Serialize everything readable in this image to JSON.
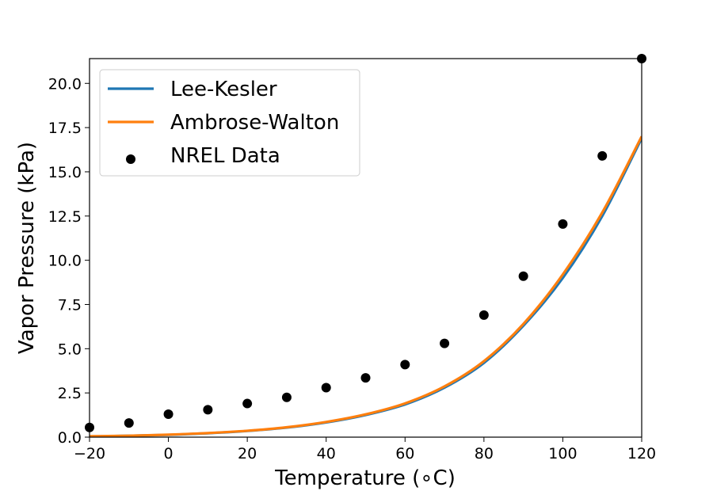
{
  "chart_data": {
    "type": "line",
    "title": "",
    "xlabel": "Temperature (∘C)",
    "ylabel": "Vapor Pressure (kPa)",
    "xlim": [
      -20,
      120
    ],
    "ylim": [
      0,
      21.4
    ],
    "xticks": [
      -20,
      0,
      20,
      40,
      60,
      80,
      100,
      120
    ],
    "xtick_labels": [
      "−20",
      "0",
      "20",
      "40",
      "60",
      "80",
      "100",
      "120"
    ],
    "yticks": [
      0,
      2.5,
      5,
      7.5,
      10,
      12.5,
      15,
      17.5,
      20
    ],
    "ytick_labels": [
      "0.0",
      "2.5",
      "5.0",
      "7.5",
      "10.0",
      "12.5",
      "15.0",
      "17.5",
      "20.0"
    ],
    "grid": false,
    "legend_position": "top-left",
    "series": [
      {
        "name": "Lee-Kesler",
        "kind": "line",
        "color": "#1f77b4",
        "x": [
          -20,
          -10,
          0,
          10,
          20,
          30,
          40,
          50,
          60,
          70,
          80,
          90,
          100,
          110,
          120
        ],
        "y": [
          0.04,
          0.08,
          0.13,
          0.22,
          0.35,
          0.54,
          0.83,
          1.25,
          1.85,
          2.8,
          4.2,
          6.3,
          9.0,
          12.5,
          16.9
        ]
      },
      {
        "name": "Ambrose-Walton",
        "kind": "line",
        "color": "#ff7f0e",
        "x": [
          -20,
          -10,
          0,
          10,
          20,
          30,
          40,
          50,
          60,
          70,
          80,
          90,
          100,
          110,
          120
        ],
        "y": [
          0.05,
          0.08,
          0.14,
          0.23,
          0.36,
          0.56,
          0.86,
          1.29,
          1.91,
          2.87,
          4.3,
          6.4,
          9.2,
          12.7,
          17.0
        ]
      },
      {
        "name": "NREL Data",
        "kind": "scatter",
        "color": "#000000",
        "x": [
          -20,
          -10,
          0,
          10,
          20,
          30,
          40,
          50,
          60,
          70,
          80,
          90,
          100,
          110,
          120
        ],
        "y": [
          0.55,
          0.8,
          1.3,
          1.55,
          1.9,
          2.25,
          2.8,
          3.35,
          4.1,
          5.3,
          6.9,
          9.1,
          12.05,
          15.9,
          21.4
        ]
      }
    ]
  }
}
